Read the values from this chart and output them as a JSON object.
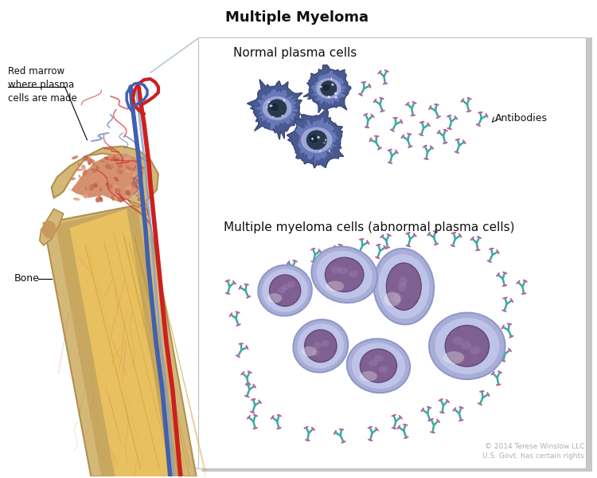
{
  "title": "Multiple Myeloma",
  "title_fontsize": 13,
  "title_fontweight": "bold",
  "bg_color": "#ffffff",
  "label_red_marrow": "Red marrow\nwhere plasma\ncells are made",
  "label_bone": "Bone",
  "label_normal": "Normal plasma cells",
  "label_myeloma": "Multiple myeloma cells (abnormal plasma cells)",
  "label_antibodies": "Antibodies",
  "copyright": "© 2014 Terese Winslow LLC\nU.S. Govt. has certain rights",
  "bone_tan": "#d4b878",
  "bone_light": "#e8d0a0",
  "bone_darker": "#c8a860",
  "marrow_red_bg": "#c8846a",
  "marrow_sponge": "#d4956a",
  "marrow_yellow": "#d4a840",
  "marrow_yellow2": "#e8c060",
  "blood_red": "#cc2020",
  "blood_blue": "#4060b0",
  "blood_blue2": "#80a0d0",
  "normal_cell_dark": "#4a5a90",
  "normal_cell_mid": "#6878b8",
  "normal_cell_light": "#9aa8d8",
  "normal_nucleus": "#2a3850",
  "normal_nuc_light": "#8090b8",
  "myeloma_cell_outer": "#a8aed8",
  "myeloma_cell_mid": "#bec4e8",
  "myeloma_cell_light": "#d0d8f8",
  "myeloma_nucleus": "#806090",
  "myeloma_nuc_dark": "#604878",
  "myeloma_nuc_light": "#a080b0",
  "ab_green": "#50b890",
  "ab_pink": "#c060a0",
  "ab_teal": "#40a8a0",
  "ab_purple": "#9060b0",
  "text_color": "#111111",
  "panel_shadow": "#c8c8c8"
}
